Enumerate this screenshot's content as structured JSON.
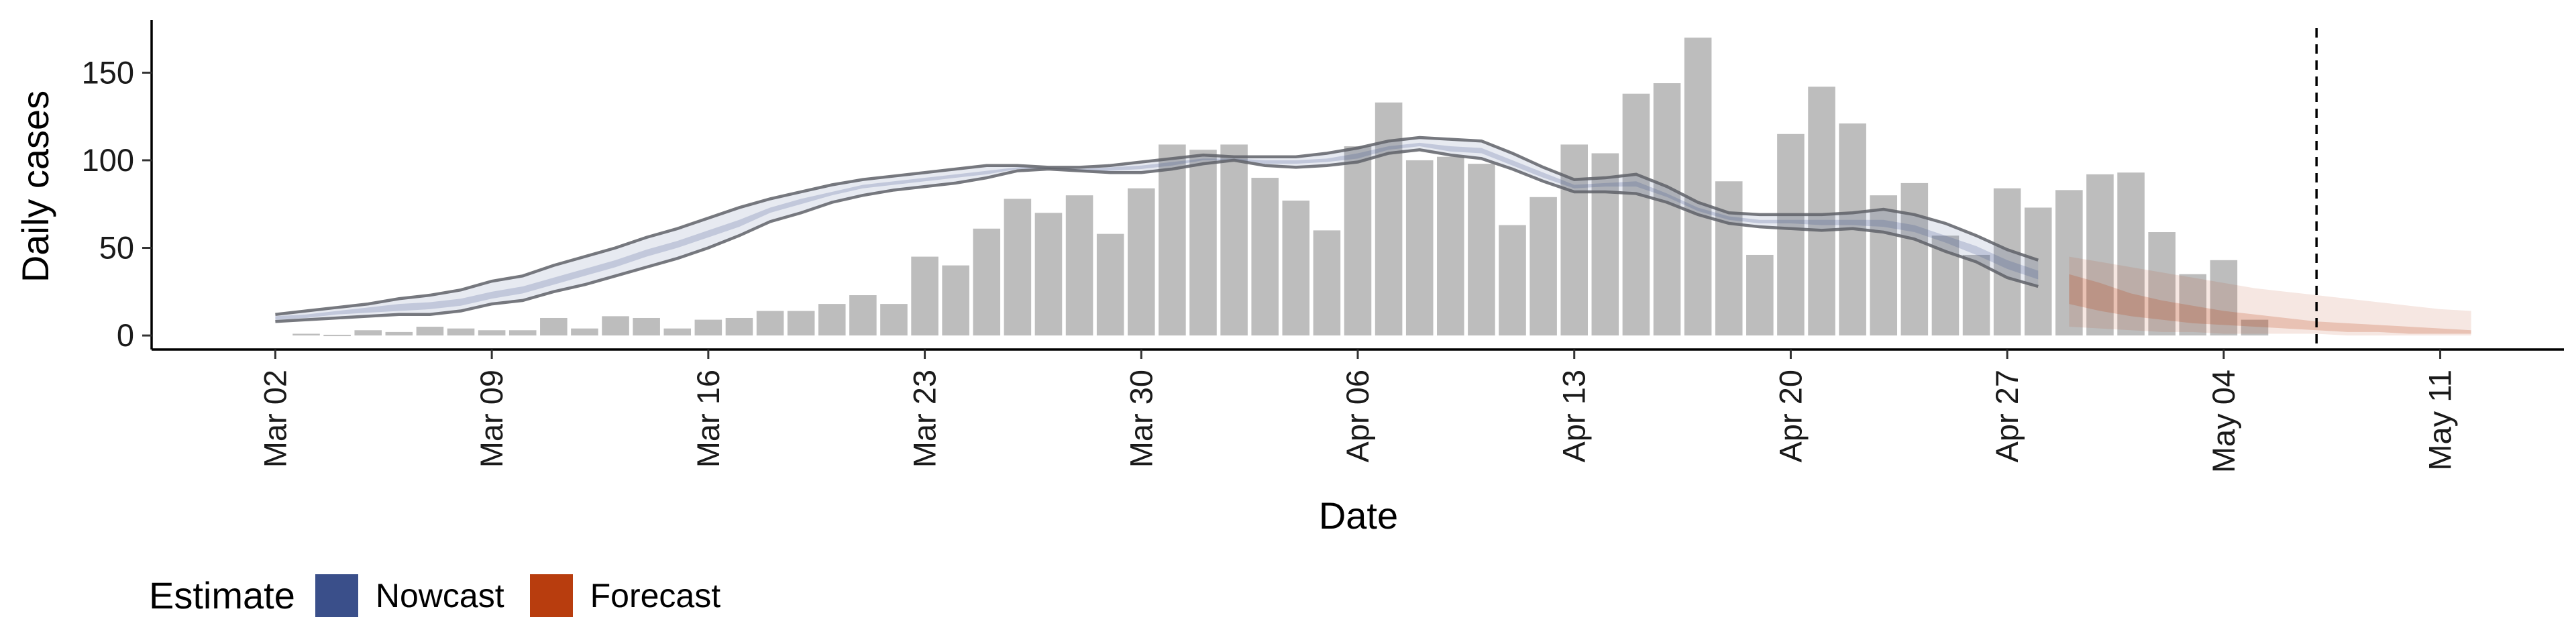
{
  "chart_data": {
    "type": "bar",
    "xlabel": "Date",
    "ylabel": "Daily cases",
    "ylim": [
      -8,
      180
    ],
    "yticks": [
      0,
      50,
      100,
      150
    ],
    "x_range": [
      "2020-02-27",
      "2020-05-15"
    ],
    "xticks": [
      {
        "date": "2020-03-02",
        "label": "Mar 02"
      },
      {
        "date": "2020-03-09",
        "label": "Mar 09"
      },
      {
        "date": "2020-03-16",
        "label": "Mar 16"
      },
      {
        "date": "2020-03-23",
        "label": "Mar 23"
      },
      {
        "date": "2020-03-30",
        "label": "Mar 30"
      },
      {
        "date": "2020-04-06",
        "label": "Apr 06"
      },
      {
        "date": "2020-04-13",
        "label": "Apr 13"
      },
      {
        "date": "2020-04-20",
        "label": "Apr 20"
      },
      {
        "date": "2020-04-27",
        "label": "Apr 27"
      },
      {
        "date": "2020-05-04",
        "label": "May 04"
      },
      {
        "date": "2020-05-11",
        "label": "May 11"
      }
    ],
    "bars_start_date": "2020-03-03",
    "bars": [
      1,
      0,
      3,
      2,
      5,
      4,
      3,
      3,
      10,
      4,
      11,
      10,
      4,
      9,
      10,
      14,
      14,
      18,
      23,
      18,
      45,
      40,
      61,
      78,
      70,
      80,
      58,
      84,
      109,
      106,
      109,
      90,
      77,
      60,
      108,
      133,
      100,
      102,
      98,
      63,
      79,
      109,
      104,
      138,
      144,
      170,
      88,
      46,
      115,
      142,
      121,
      80,
      87,
      57,
      46,
      84,
      73,
      83,
      92,
      93,
      59,
      35,
      43,
      9
    ],
    "bar_color": "#bdbdbd",
    "nowcast": {
      "name": "Nowcast",
      "color": "#3a4f8a",
      "start_date": "2020-03-02",
      "upper": [
        12,
        14,
        16,
        18,
        21,
        23,
        26,
        31,
        34,
        40,
        45,
        50,
        56,
        61,
        67,
        73,
        78,
        82,
        86,
        89,
        91,
        93,
        95,
        97,
        97,
        96,
        96,
        97,
        99,
        101,
        103,
        102,
        102,
        102,
        104,
        107,
        111,
        113,
        112,
        111,
        104,
        96,
        89,
        90,
        92,
        85,
        76,
        70,
        69,
        69,
        69,
        70,
        72,
        69,
        64,
        57,
        49,
        43
      ],
      "lower": [
        8,
        9,
        10,
        11,
        12,
        12,
        14,
        18,
        20,
        25,
        29,
        34,
        39,
        44,
        50,
        57,
        65,
        70,
        76,
        80,
        83,
        85,
        87,
        90,
        94,
        95,
        94,
        93,
        93,
        95,
        98,
        100,
        97,
        96,
        97,
        99,
        104,
        106,
        103,
        101,
        95,
        88,
        82,
        82,
        81,
        76,
        69,
        64,
        62,
        61,
        60,
        61,
        59,
        55,
        48,
        42,
        33,
        28
      ],
      "mid_upper": [
        11,
        12,
        14,
        16,
        18,
        19,
        21,
        25,
        28,
        33,
        38,
        43,
        49,
        54,
        60,
        66,
        73,
        78,
        82,
        86,
        88,
        90,
        92,
        94,
        96,
        96,
        95,
        96,
        97,
        99,
        101,
        101,
        100,
        100,
        101,
        104,
        108,
        110,
        108,
        107,
        100,
        93,
        86,
        87,
        88,
        81,
        73,
        68,
        66,
        66,
        66,
        66,
        66,
        63,
        57,
        51,
        43,
        37
      ],
      "mid_lower": [
        9,
        10,
        12,
        13,
        14,
        15,
        17,
        21,
        24,
        29,
        34,
        39,
        45,
        50,
        56,
        62,
        70,
        75,
        80,
        84,
        86,
        88,
        90,
        92,
        95,
        95,
        94,
        94,
        95,
        97,
        100,
        100,
        98,
        98,
        99,
        101,
        106,
        108,
        105,
        104,
        97,
        90,
        84,
        85,
        85,
        79,
        71,
        66,
        64,
        64,
        63,
        63,
        62,
        59,
        53,
        46,
        38,
        32
      ]
    },
    "forecast": {
      "name": "Forecast",
      "color": "#b83d0e",
      "start_date": "2020-04-29",
      "upper": [
        45,
        42,
        39,
        36,
        33,
        30,
        27,
        25,
        23,
        21,
        19,
        17,
        15,
        14
      ],
      "lower": [
        5,
        4,
        3,
        2,
        2,
        1,
        1,
        1,
        1,
        0,
        0,
        0,
        0,
        0
      ],
      "mid_upper": [
        35,
        30,
        24,
        20,
        17,
        14,
        12,
        10,
        8,
        7,
        6,
        5,
        4,
        3
      ],
      "mid_lower": [
        18,
        14,
        11,
        9,
        7,
        6,
        5,
        4,
        3,
        2,
        2,
        1,
        1,
        1
      ]
    },
    "vline_date": "2020-05-07",
    "legend": {
      "title": "Estimate",
      "position": "bottom-left",
      "entries": [
        {
          "label": "Nowcast",
          "color": "#3a4f8a"
        },
        {
          "label": "Forecast",
          "color": "#b83d0e"
        }
      ]
    }
  }
}
